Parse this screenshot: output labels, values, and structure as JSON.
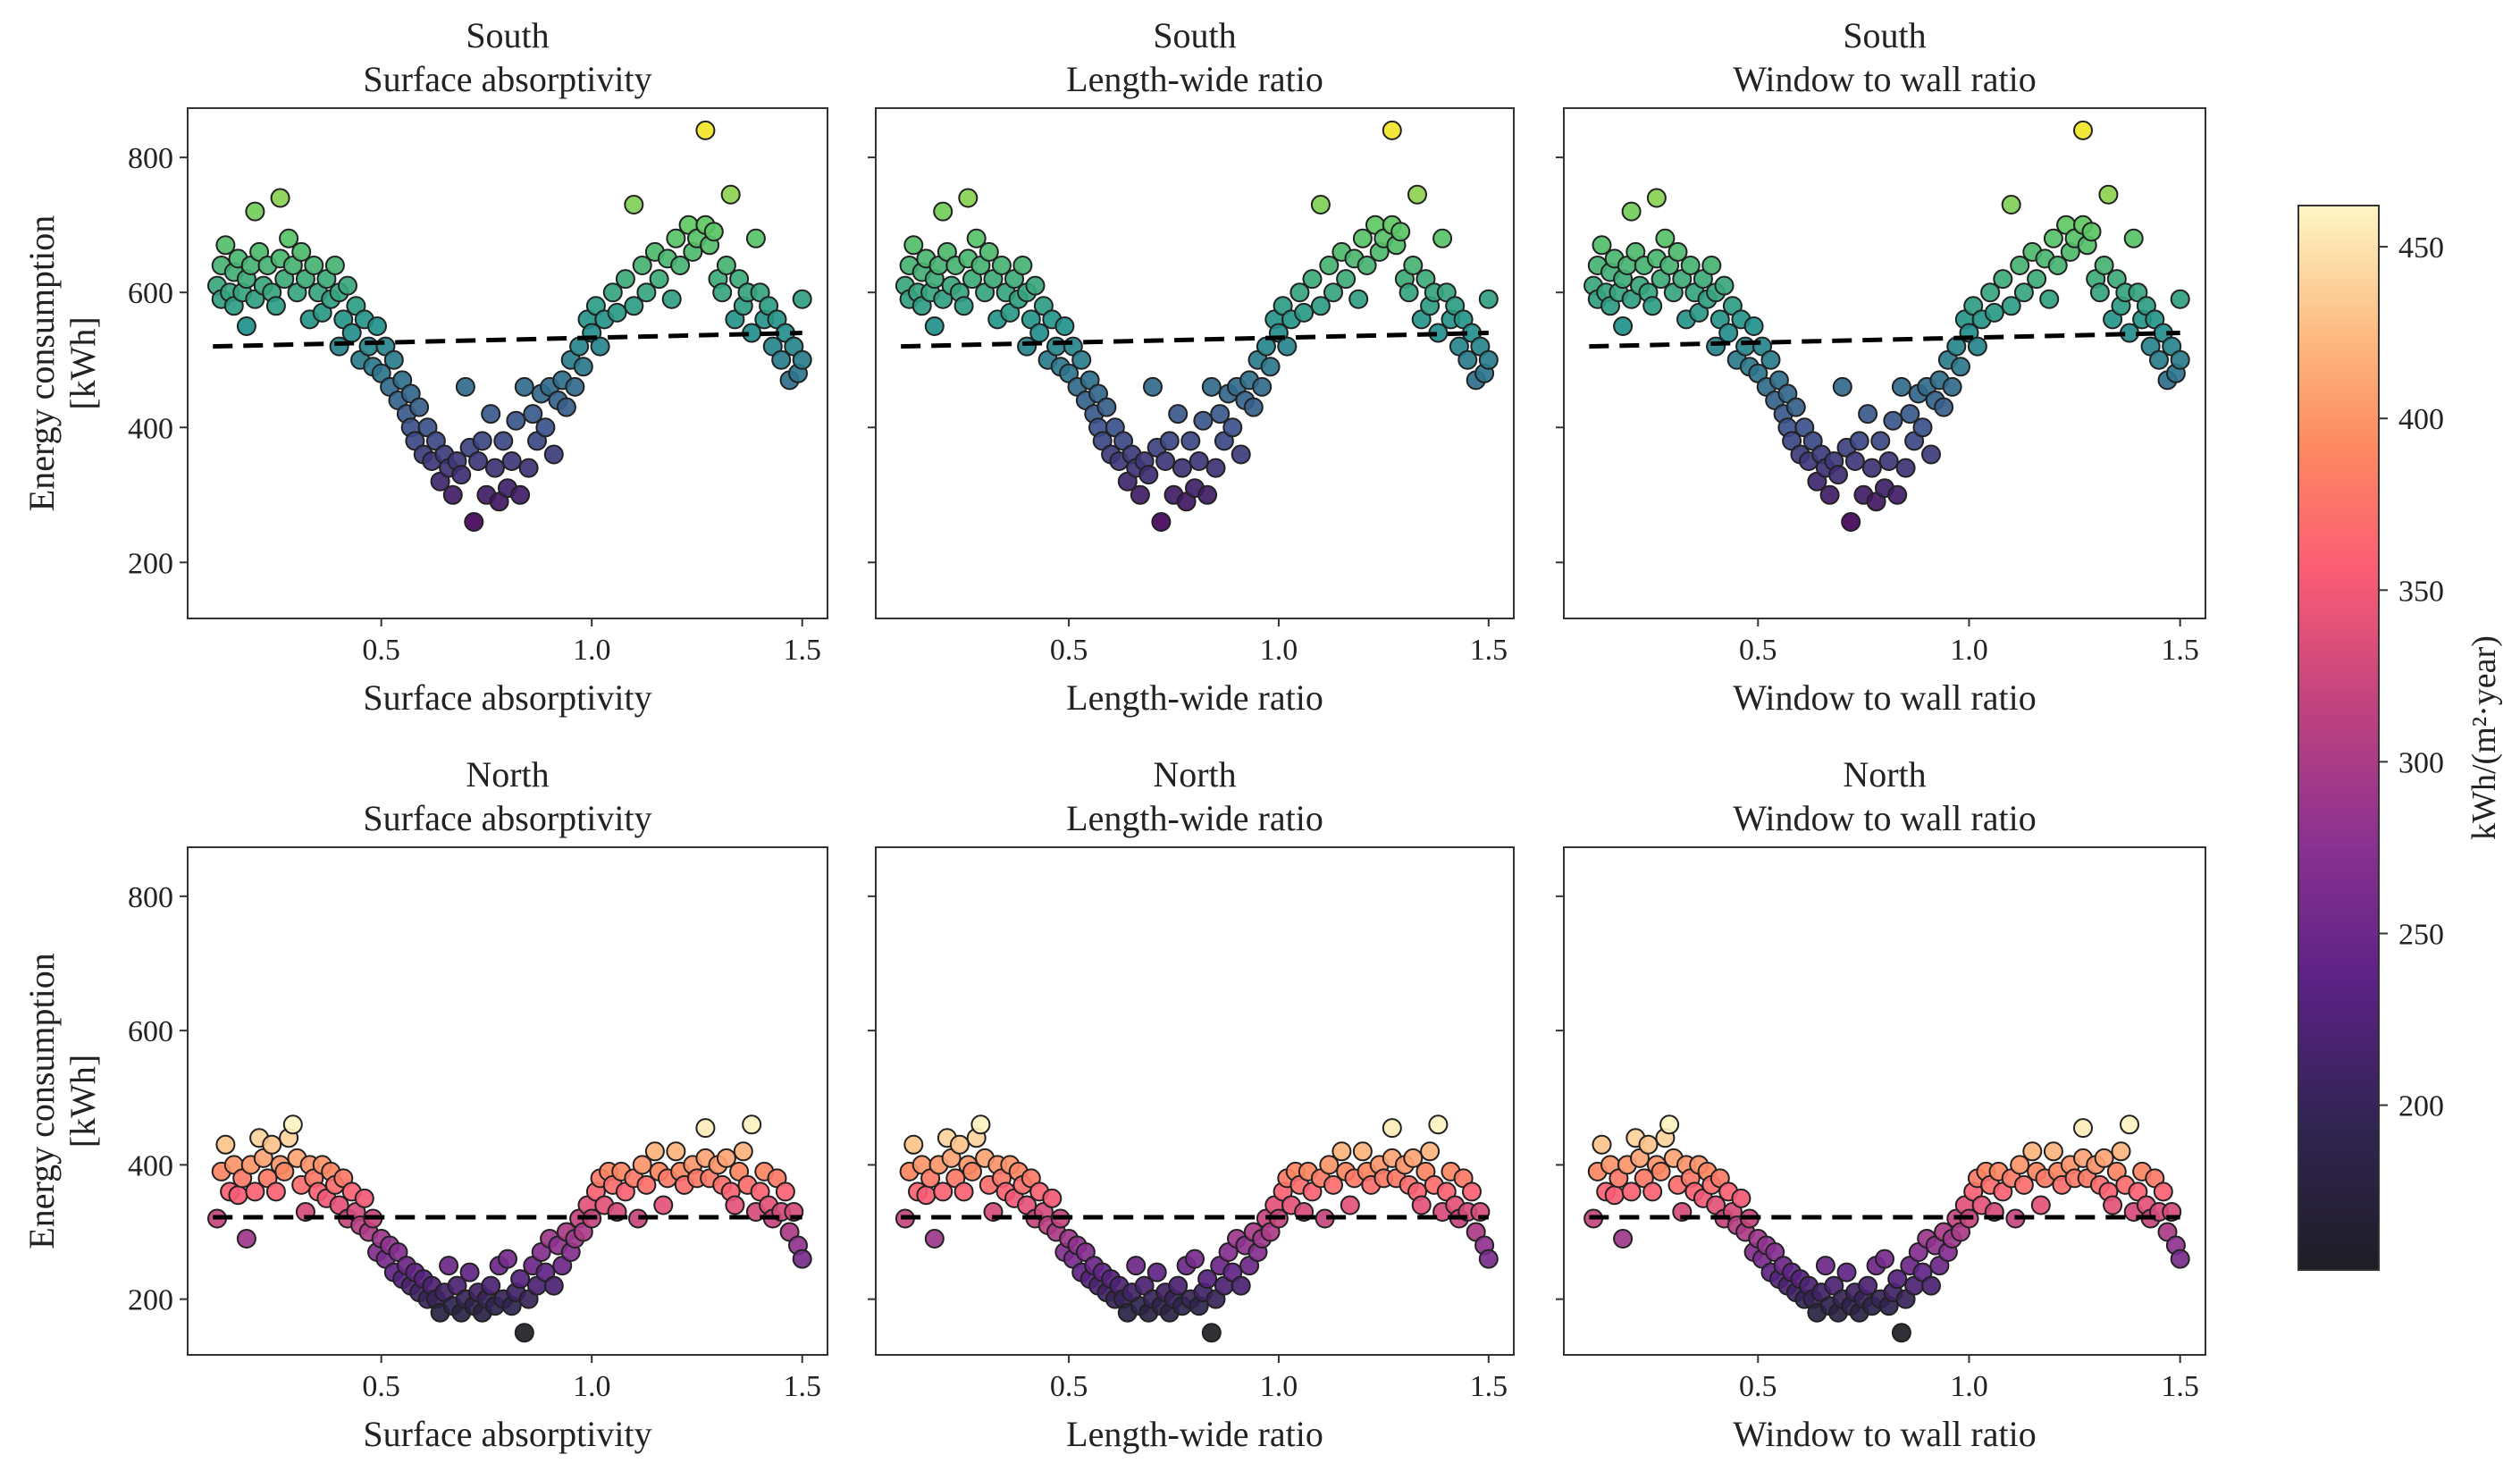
{
  "chart_data": {
    "type": "scatter",
    "layout": "2 rows x 3 columns with shared colorbar at right",
    "xlim": [
      0.04,
      1.56
    ],
    "ylim": [
      117,
      873
    ],
    "xticks": [
      "0.5",
      "1.0",
      "1.5"
    ],
    "xtick_values": [
      0.5,
      1.0,
      1.5
    ],
    "yticks": [
      "200",
      "400",
      "600",
      "800"
    ],
    "ytick_values": [
      200,
      400,
      600,
      800
    ],
    "ylabel_line1": "Energy consumption",
    "ylabel_line2": "[kWh]",
    "rows": [
      {
        "orientation": "South",
        "colormap": "viridis",
        "color_range": [
          250,
          850
        ],
        "trend": [
          [
            0.1,
            520
          ],
          [
            1.5,
            540
          ]
        ]
      },
      {
        "orientation": "North",
        "colormap": "magma",
        "color_range": [
          152,
          462
        ],
        "trend": [
          [
            0.1,
            322
          ],
          [
            1.5,
            322
          ]
        ]
      }
    ],
    "columns": [
      {
        "variable": "Surface absorptivity",
        "xlabel": "Surface absorptivity"
      },
      {
        "variable": "Length-wide ratio",
        "xlabel": "Length-wide ratio"
      },
      {
        "variable": "Window to wall ratio",
        "xlabel": "Window to wall ratio"
      }
    ],
    "colorbar": {
      "label": "kWh/(m²·year)",
      "range": [
        152,
        462
      ],
      "ticks": [
        "200",
        "250",
        "300",
        "350",
        "400",
        "450"
      ],
      "tick_values": [
        200,
        250,
        300,
        350,
        400,
        450
      ]
    },
    "series": {
      "South": [
        [
          0.11,
          610
        ],
        [
          0.12,
          590
        ],
        [
          0.12,
          640
        ],
        [
          0.13,
          670
        ],
        [
          0.14,
          600
        ],
        [
          0.15,
          630
        ],
        [
          0.15,
          580
        ],
        [
          0.16,
          650
        ],
        [
          0.17,
          600
        ],
        [
          0.18,
          550
        ],
        [
          0.18,
          620
        ],
        [
          0.19,
          640
        ],
        [
          0.2,
          720
        ],
        [
          0.2,
          590
        ],
        [
          0.21,
          660
        ],
        [
          0.22,
          610
        ],
        [
          0.23,
          640
        ],
        [
          0.24,
          600
        ],
        [
          0.25,
          580
        ],
        [
          0.26,
          740
        ],
        [
          0.26,
          650
        ],
        [
          0.27,
          620
        ],
        [
          0.28,
          680
        ],
        [
          0.29,
          640
        ],
        [
          0.3,
          600
        ],
        [
          0.31,
          660
        ],
        [
          0.32,
          620
        ],
        [
          0.33,
          560
        ],
        [
          0.34,
          640
        ],
        [
          0.35,
          600
        ],
        [
          0.36,
          570
        ],
        [
          0.37,
          620
        ],
        [
          0.38,
          590
        ],
        [
          0.39,
          640
        ],
        [
          0.4,
          520
        ],
        [
          0.4,
          600
        ],
        [
          0.41,
          560
        ],
        [
          0.42,
          610
        ],
        [
          0.43,
          540
        ],
        [
          0.44,
          580
        ],
        [
          0.45,
          500
        ],
        [
          0.46,
          560
        ],
        [
          0.47,
          520
        ],
        [
          0.48,
          490
        ],
        [
          0.49,
          550
        ],
        [
          0.5,
          480
        ],
        [
          0.51,
          520
        ],
        [
          0.52,
          460
        ],
        [
          0.53,
          500
        ],
        [
          0.54,
          440
        ],
        [
          0.55,
          470
        ],
        [
          0.56,
          420
        ],
        [
          0.57,
          400
        ],
        [
          0.57,
          450
        ],
        [
          0.58,
          380
        ],
        [
          0.59,
          430
        ],
        [
          0.6,
          360
        ],
        [
          0.61,
          400
        ],
        [
          0.62,
          350
        ],
        [
          0.63,
          380
        ],
        [
          0.64,
          320
        ],
        [
          0.65,
          360
        ],
        [
          0.66,
          340
        ],
        [
          0.67,
          300
        ],
        [
          0.68,
          350
        ],
        [
          0.69,
          330
        ],
        [
          0.7,
          460
        ],
        [
          0.71,
          370
        ],
        [
          0.72,
          260
        ],
        [
          0.73,
          350
        ],
        [
          0.74,
          380
        ],
        [
          0.75,
          300
        ],
        [
          0.76,
          420
        ],
        [
          0.77,
          340
        ],
        [
          0.78,
          290
        ],
        [
          0.79,
          380
        ],
        [
          0.8,
          310
        ],
        [
          0.81,
          350
        ],
        [
          0.82,
          410
        ],
        [
          0.83,
          300
        ],
        [
          0.84,
          460
        ],
        [
          0.85,
          340
        ],
        [
          0.86,
          420
        ],
        [
          0.87,
          380
        ],
        [
          0.88,
          450
        ],
        [
          0.89,
          400
        ],
        [
          0.9,
          460
        ],
        [
          0.91,
          360
        ],
        [
          0.92,
          440
        ],
        [
          0.93,
          470
        ],
        [
          0.94,
          430
        ],
        [
          0.95,
          500
        ],
        [
          0.96,
          460
        ],
        [
          0.97,
          520
        ],
        [
          0.98,
          490
        ],
        [
          0.99,
          560
        ],
        [
          1.0,
          540
        ],
        [
          1.01,
          580
        ],
        [
          1.02,
          520
        ],
        [
          1.03,
          560
        ],
        [
          1.05,
          600
        ],
        [
          1.06,
          570
        ],
        [
          1.08,
          620
        ],
        [
          1.1,
          730
        ],
        [
          1.1,
          580
        ],
        [
          1.12,
          640
        ],
        [
          1.13,
          600
        ],
        [
          1.15,
          660
        ],
        [
          1.16,
          620
        ],
        [
          1.18,
          650
        ],
        [
          1.19,
          590
        ],
        [
          1.2,
          680
        ],
        [
          1.21,
          640
        ],
        [
          1.23,
          700
        ],
        [
          1.24,
          660
        ],
        [
          1.25,
          680
        ],
        [
          1.27,
          840
        ],
        [
          1.27,
          700
        ],
        [
          1.28,
          670
        ],
        [
          1.29,
          690
        ],
        [
          1.3,
          620
        ],
        [
          1.31,
          600
        ],
        [
          1.32,
          640
        ],
        [
          1.33,
          745
        ],
        [
          1.34,
          560
        ],
        [
          1.35,
          620
        ],
        [
          1.36,
          580
        ],
        [
          1.37,
          600
        ],
        [
          1.38,
          540
        ],
        [
          1.39,
          680
        ],
        [
          1.4,
          600
        ],
        [
          1.41,
          560
        ],
        [
          1.42,
          580
        ],
        [
          1.43,
          520
        ],
        [
          1.44,
          560
        ],
        [
          1.45,
          500
        ],
        [
          1.46,
          540
        ],
        [
          1.47,
          470
        ],
        [
          1.48,
          520
        ],
        [
          1.49,
          480
        ],
        [
          1.5,
          590
        ],
        [
          1.5,
          500
        ]
      ],
      "North": [
        [
          0.11,
          320
        ],
        [
          0.12,
          390
        ],
        [
          0.13,
          430
        ],
        [
          0.14,
          360
        ],
        [
          0.15,
          400
        ],
        [
          0.16,
          355
        ],
        [
          0.17,
          380
        ],
        [
          0.18,
          290
        ],
        [
          0.19,
          400
        ],
        [
          0.2,
          360
        ],
        [
          0.21,
          440
        ],
        [
          0.22,
          410
        ],
        [
          0.23,
          380
        ],
        [
          0.24,
          430
        ],
        [
          0.25,
          360
        ],
        [
          0.26,
          400
        ],
        [
          0.27,
          390
        ],
        [
          0.28,
          440
        ],
        [
          0.29,
          460
        ],
        [
          0.3,
          410
        ],
        [
          0.31,
          370
        ],
        [
          0.32,
          330
        ],
        [
          0.33,
          400
        ],
        [
          0.34,
          380
        ],
        [
          0.35,
          360
        ],
        [
          0.36,
          400
        ],
        [
          0.37,
          350
        ],
        [
          0.38,
          390
        ],
        [
          0.39,
          370
        ],
        [
          0.4,
          340
        ],
        [
          0.41,
          380
        ],
        [
          0.42,
          320
        ],
        [
          0.43,
          360
        ],
        [
          0.44,
          330
        ],
        [
          0.45,
          310
        ],
        [
          0.46,
          350
        ],
        [
          0.47,
          300
        ],
        [
          0.48,
          320
        ],
        [
          0.49,
          270
        ],
        [
          0.5,
          290
        ],
        [
          0.51,
          260
        ],
        [
          0.52,
          280
        ],
        [
          0.53,
          240
        ],
        [
          0.54,
          270
        ],
        [
          0.55,
          230
        ],
        [
          0.56,
          250
        ],
        [
          0.57,
          220
        ],
        [
          0.58,
          240
        ],
        [
          0.59,
          210
        ],
        [
          0.6,
          230
        ],
        [
          0.61,
          200
        ],
        [
          0.62,
          220
        ],
        [
          0.63,
          200
        ],
        [
          0.64,
          180
        ],
        [
          0.65,
          210
        ],
        [
          0.66,
          250
        ],
        [
          0.67,
          190
        ],
        [
          0.68,
          220
        ],
        [
          0.69,
          180
        ],
        [
          0.7,
          200
        ],
        [
          0.71,
          240
        ],
        [
          0.72,
          190
        ],
        [
          0.73,
          210
        ],
        [
          0.74,
          180
        ],
        [
          0.75,
          200
        ],
        [
          0.76,
          220
        ],
        [
          0.77,
          190
        ],
        [
          0.78,
          250
        ],
        [
          0.79,
          200
        ],
        [
          0.8,
          260
        ],
        [
          0.81,
          190
        ],
        [
          0.82,
          210
        ],
        [
          0.83,
          230
        ],
        [
          0.84,
          150
        ],
        [
          0.85,
          200
        ],
        [
          0.86,
          250
        ],
        [
          0.87,
          220
        ],
        [
          0.88,
          270
        ],
        [
          0.89,
          240
        ],
        [
          0.9,
          290
        ],
        [
          0.91,
          220
        ],
        [
          0.92,
          280
        ],
        [
          0.93,
          250
        ],
        [
          0.94,
          300
        ],
        [
          0.95,
          270
        ],
        [
          0.96,
          290
        ],
        [
          0.97,
          320
        ],
        [
          0.98,
          300
        ],
        [
          0.99,
          340
        ],
        [
          1.0,
          320
        ],
        [
          1.01,
          360
        ],
        [
          1.02,
          380
        ],
        [
          1.03,
          340
        ],
        [
          1.04,
          390
        ],
        [
          1.05,
          370
        ],
        [
          1.06,
          330
        ],
        [
          1.07,
          390
        ],
        [
          1.08,
          360
        ],
        [
          1.1,
          380
        ],
        [
          1.11,
          320
        ],
        [
          1.12,
          400
        ],
        [
          1.13,
          370
        ],
        [
          1.15,
          420
        ],
        [
          1.16,
          390
        ],
        [
          1.17,
          340
        ],
        [
          1.18,
          380
        ],
        [
          1.2,
          420
        ],
        [
          1.21,
          390
        ],
        [
          1.22,
          370
        ],
        [
          1.24,
          400
        ],
        [
          1.25,
          380
        ],
        [
          1.27,
          455
        ],
        [
          1.27,
          410
        ],
        [
          1.28,
          380
        ],
        [
          1.3,
          400
        ],
        [
          1.31,
          370
        ],
        [
          1.32,
          410
        ],
        [
          1.33,
          360
        ],
        [
          1.34,
          340
        ],
        [
          1.35,
          390
        ],
        [
          1.36,
          420
        ],
        [
          1.37,
          370
        ],
        [
          1.38,
          460
        ],
        [
          1.39,
          330
        ],
        [
          1.4,
          360
        ],
        [
          1.41,
          390
        ],
        [
          1.42,
          340
        ],
        [
          1.43,
          320
        ],
        [
          1.44,
          380
        ],
        [
          1.45,
          330
        ],
        [
          1.46,
          360
        ],
        [
          1.47,
          300
        ],
        [
          1.48,
          330
        ],
        [
          1.49,
          280
        ],
        [
          1.5,
          260
        ]
      ]
    },
    "grid": false
  }
}
